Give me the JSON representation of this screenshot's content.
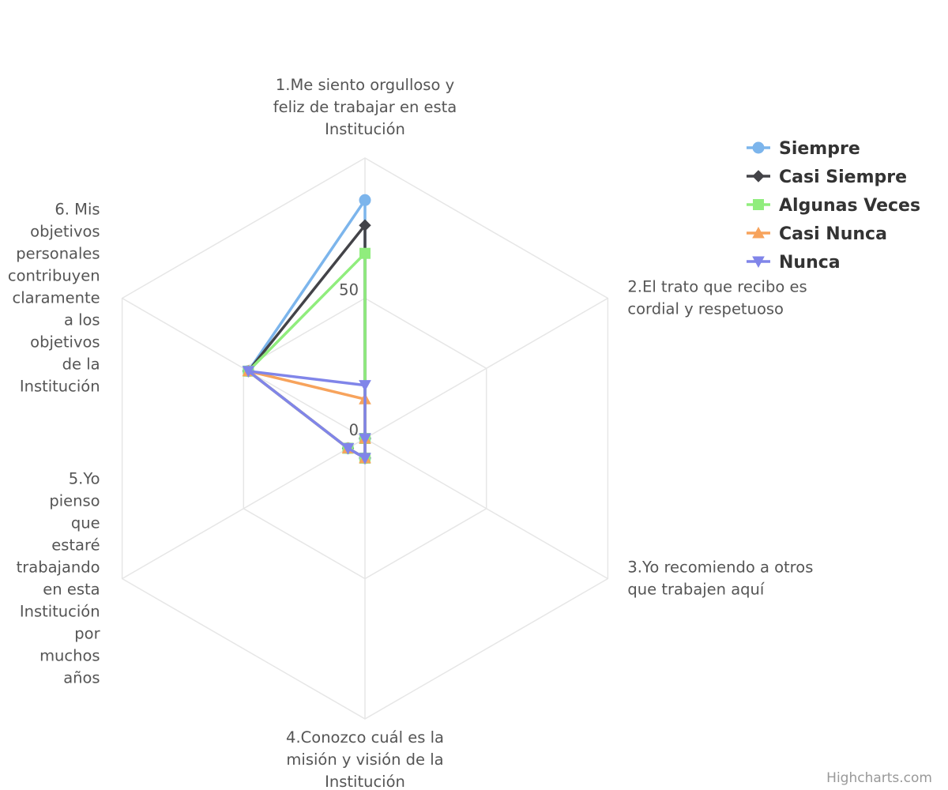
{
  "chart_data": {
    "type": "radar",
    "categories": [
      [
        "1.Me siento orgulloso y",
        "feliz de trabajar en esta",
        "Institución"
      ],
      [
        "2.El trato que recibo es",
        "cordial y respetuoso"
      ],
      [
        "3.Yo recomiendo a otros",
        "que trabajen aquí"
      ],
      [
        "4.Conozco cuál es la",
        "misión y visión de la",
        "Institución"
      ],
      [
        "5.Yo",
        "pienso",
        "que",
        "estaré",
        "trabajando",
        "en esta",
        "Institución",
        "por",
        "muchos",
        "años"
      ],
      [
        "6. Mis",
        "objetivos",
        "personales",
        "contribuyen",
        "claramente",
        "a los",
        "objetivos",
        "de la",
        "Institución"
      ]
    ],
    "ylim": [
      0,
      100
    ],
    "tick_labels": [
      "0",
      "50"
    ],
    "grid": true,
    "legend_position": "top-right",
    "series": [
      {
        "name": "Siempre",
        "color": "#7cb5ec",
        "marker": "circle",
        "values": [
          85,
          0,
          0,
          7,
          7,
          48
        ]
      },
      {
        "name": "Casi Siempre",
        "color": "#434348",
        "marker": "diamond",
        "values": [
          76,
          0,
          0,
          7,
          7,
          48
        ]
      },
      {
        "name": "Algunas Veces",
        "color": "#90ed7d",
        "marker": "square",
        "values": [
          66,
          0,
          0,
          7,
          7,
          48
        ]
      },
      {
        "name": "Casi Nunca",
        "color": "#f7a35c",
        "marker": "triangle",
        "values": [
          14,
          0,
          0,
          7,
          7,
          48
        ]
      },
      {
        "name": "Nunca",
        "color": "#8085e9",
        "marker": "triangle-down",
        "values": [
          19,
          0,
          0,
          7,
          7,
          48
        ]
      }
    ]
  },
  "credits": "Highcharts.com"
}
